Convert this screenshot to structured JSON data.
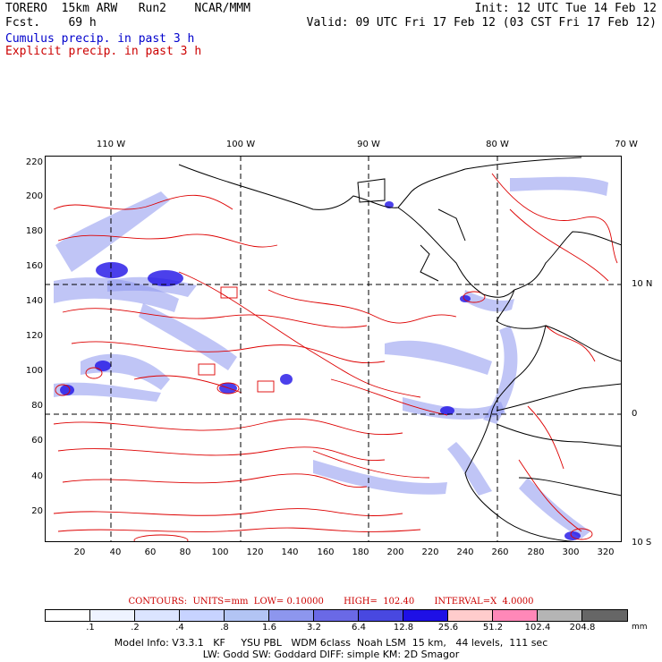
{
  "header": {
    "model": "TORERO  15km ARW   Run2    NCAR/MMM",
    "fcst": "Fcst.    69 h",
    "init": "Init: 12 UTC Tue 14 Feb 12",
    "valid": "Valid: 09 UTC Fri 17 Feb 12 (03 CST Fri 17 Feb 12)",
    "cumulus": "Cumulus precip. in past 3 h",
    "explicit": "Explicit precip. in past 3 h"
  },
  "colors": {
    "cumulus": "#0000cc",
    "explicit": "#cc0000",
    "coast": "#000000",
    "grid": "#000000"
  },
  "axes": {
    "yticks": [
      "220",
      "200",
      "180",
      "160",
      "140",
      "120",
      "100",
      "80",
      "60",
      "40",
      "20"
    ],
    "xticks": [
      "20",
      "40",
      "60",
      "80",
      "100",
      "120",
      "140",
      "160",
      "180",
      "200",
      "220",
      "240",
      "260",
      "280",
      "300",
      "320"
    ],
    "lon_labels": [
      "110 W",
      "100 W",
      "90 W",
      "80 W",
      "70 W"
    ],
    "lat_labels": [
      "10 N",
      "0",
      "10 S"
    ]
  },
  "contours_line": "CONTOURS:  UNITS=mm  LOW= 0.10000       HIGH=  102.40       INTERVAL=X  4.0000",
  "legend": {
    "colors": [
      "#ffffff",
      "#eef3ff",
      "#dbe4ff",
      "#c7d3ff",
      "#b2c4f4",
      "#8d96ee",
      "#6a69e6",
      "#4848e0",
      "#1e10e6",
      "#ffcccc",
      "#ff88b8",
      "#b5b5b5",
      "#666666",
      "#2b2b2b",
      "#d7aaff"
    ],
    "labels": [
      ".1",
      ".2",
      ".4",
      ".8",
      "1.6",
      "3.2",
      "6.4",
      "12.8",
      "25.6",
      "51.2",
      "102.4",
      "204.8"
    ],
    "unit": "mm"
  },
  "info": {
    "line1": "Model Info: V3.3.1   KF     YSU PBL   WDM 6class  Noah LSM  15 km,   44 levels,  111 sec",
    "line2": "LW: Godd SW: Goddard DIFF: simple KM: 2D Smagor"
  }
}
